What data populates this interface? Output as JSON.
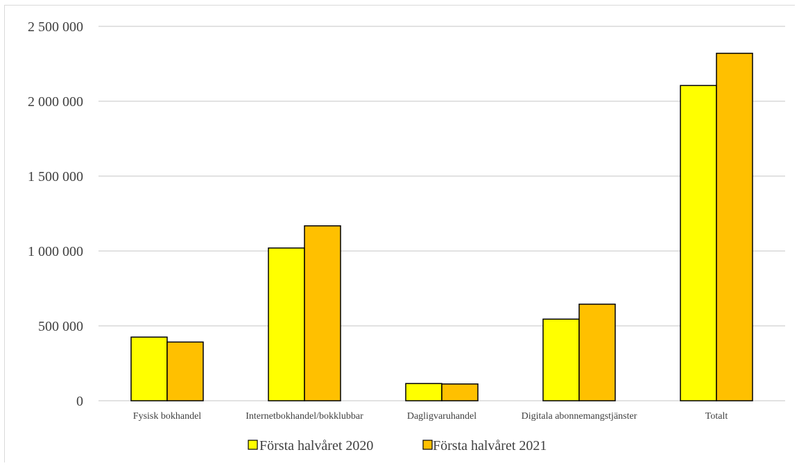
{
  "chart_data": {
    "type": "bar",
    "title": "",
    "xlabel": "",
    "ylabel": "",
    "categories": [
      "Fysisk bokhandel",
      "Internetbokhandel/bokklubbar",
      "Dagligvaruhandel",
      "Digitala abonnemangstjänster",
      "Totalt"
    ],
    "series": [
      {
        "name": "Första halvåret 2020",
        "color": "#ffff00",
        "values": [
          425000,
          1020000,
          115000,
          545000,
          2105000
        ]
      },
      {
        "name": "Första halvåret 2021",
        "color": "#ffc000",
        "values": [
          392000,
          1168000,
          112000,
          645000,
          2320000
        ]
      }
    ],
    "ylim": [
      0,
      2500000
    ],
    "yticks": [
      0,
      500000,
      1000000,
      1500000,
      2000000,
      2500000
    ],
    "ytick_labels": [
      "0",
      "500 000",
      "1 000 000",
      "1 500 000",
      "2 000 000",
      "2 500 000"
    ],
    "grid": true,
    "legend_position": "bottom",
    "bar_outline_color": "#000000",
    "gridline_color": "#d9d9d9"
  }
}
